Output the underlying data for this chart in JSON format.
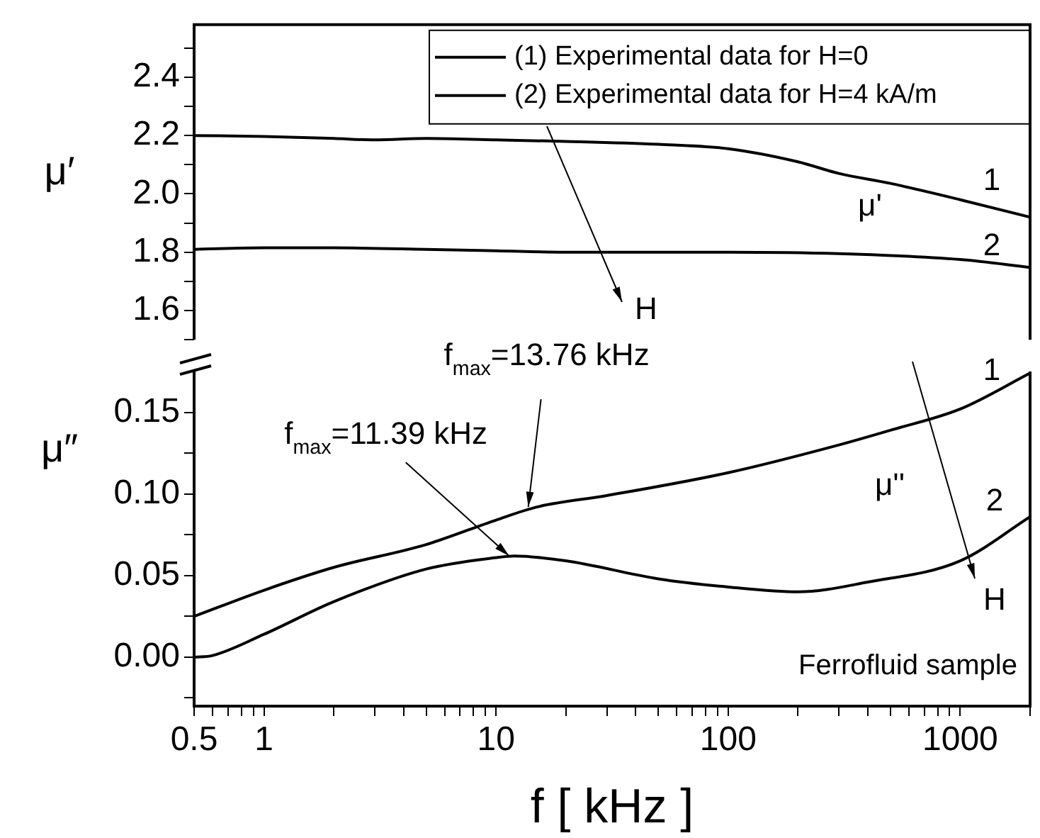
{
  "chart_data": [
    {
      "type": "line",
      "ylabel": "μ′",
      "xlim": [
        0.5,
        2000
      ],
      "ylim": [
        1.5,
        2.58
      ],
      "log": "x",
      "tick_labels": "y",
      "legend": "top right",
      "yticks": [
        {
          "value": 1.5,
          "label": null
        },
        1.6,
        {
          "value": 1.7,
          "label": null
        },
        1.8,
        {
          "value": 1.9,
          "label": null
        },
        {
          "value": 2,
          "label": "2.0"
        },
        {
          "value": 2.1,
          "label": null
        },
        2.2,
        {
          "value": 2.3,
          "label": null
        },
        2.4,
        {
          "value": 2.5,
          "label": null
        }
      ],
      "series": [
        {
          "name": "(1) Experimental data for H=0",
          "color": "#000000",
          "x": [
            0.5,
            1,
            2,
            3,
            5,
            10,
            20,
            50,
            100,
            200,
            300,
            500,
            1000,
            2000
          ],
          "values": [
            2.2,
            2.197,
            2.19,
            2.185,
            2.19,
            2.185,
            2.18,
            2.17,
            2.155,
            2.11,
            2.07,
            2.036,
            1.98,
            1.92
          ]
        },
        {
          "name": "(2) Experimental data for H=4 kA/m",
          "color": "#000000",
          "x": [
            0.5,
            1,
            2,
            5,
            10,
            20,
            50,
            100,
            300,
            1000,
            2000
          ],
          "values": [
            1.81,
            1.815,
            1.815,
            1.81,
            1.805,
            1.8,
            1.8,
            1.8,
            1.795,
            1.775,
            1.748
          ]
        }
      ],
      "annotations": [
        "1",
        "2",
        "μ'",
        "H"
      ]
    },
    {
      "type": "line",
      "ylabel": "μ″",
      "xlabel": "f [ kHz ]",
      "xlim": [
        0.5,
        2000
      ],
      "ylim": [
        -0.03,
        0.175
      ],
      "log": "x",
      "xticks": [
        0.5,
        {
          "value": 0.6,
          "label": null
        },
        {
          "value": 0.7,
          "label": null
        },
        {
          "value": 0.8,
          "label": null
        },
        {
          "value": 0.9,
          "label": null
        },
        1,
        {
          "value": 2,
          "label": null
        },
        {
          "value": 3,
          "label": null
        },
        {
          "value": 4,
          "label": null
        },
        {
          "value": 5,
          "label": null
        },
        {
          "value": 6,
          "label": null
        },
        {
          "value": 7,
          "label": null
        },
        {
          "value": 8,
          "label": null
        },
        {
          "value": 9,
          "label": null
        },
        10,
        {
          "value": 20,
          "label": null
        },
        {
          "value": 30,
          "label": null
        },
        {
          "value": 40,
          "label": null
        },
        {
          "value": 50,
          "label": null
        },
        {
          "value": 60,
          "label": null
        },
        {
          "value": 70,
          "label": null
        },
        {
          "value": 80,
          "label": null
        },
        {
          "value": 90,
          "label": null
        },
        100,
        {
          "value": 200,
          "label": null
        },
        {
          "value": 300,
          "label": null
        },
        {
          "value": 400,
          "label": null
        },
        {
          "value": 500,
          "label": null
        },
        {
          "value": 600,
          "label": null
        },
        {
          "value": 700,
          "label": null
        },
        {
          "value": 800,
          "label": null
        },
        {
          "value": 900,
          "label": null
        },
        1000,
        {
          "value": 2000,
          "label": null
        }
      ],
      "yticks": [
        {
          "value": -0.025,
          "label": null
        },
        {
          "value": 0,
          "label": "0.00"
        },
        {
          "value": 0.025,
          "label": null
        },
        0.05,
        {
          "value": 0.075,
          "label": null
        },
        {
          "value": 0.1,
          "label": "0.10"
        },
        {
          "value": 0.125,
          "label": null
        },
        0.15
      ],
      "series": [
        {
          "color": "#000000",
          "x": [
            0.5,
            1,
            2,
            5,
            10,
            15,
            30,
            100,
            300,
            500,
            1000,
            2000
          ],
          "values": [
            0.025,
            0.041,
            0.055,
            0.069,
            0.084,
            0.092,
            0.099,
            0.113,
            0.13,
            0.139,
            0.152,
            0.174
          ]
        },
        {
          "color": "#000000",
          "x": [
            0.5,
            0.6,
            1,
            2,
            5,
            10,
            12,
            20,
            50,
            100,
            200,
            400,
            1000,
            2000
          ],
          "values": [
            0,
            0.001,
            0.014,
            0.034,
            0.054,
            0.061,
            0.062,
            0.059,
            0.048,
            0.043,
            0.04,
            0.046,
            0.059,
            0.086
          ]
        }
      ],
      "annotations": [
        {
          "text": "f$_{max}$=13.76 kHz",
          "x": 13.76,
          "y": 0.092
        },
        {
          "text": "f$_{max}$=11.39 kHz",
          "x": 11.39,
          "y": 0.062
        },
        "1",
        "2",
        "μ''",
        "H",
        "Ferrofluid sample"
      ]
    }
  ]
}
